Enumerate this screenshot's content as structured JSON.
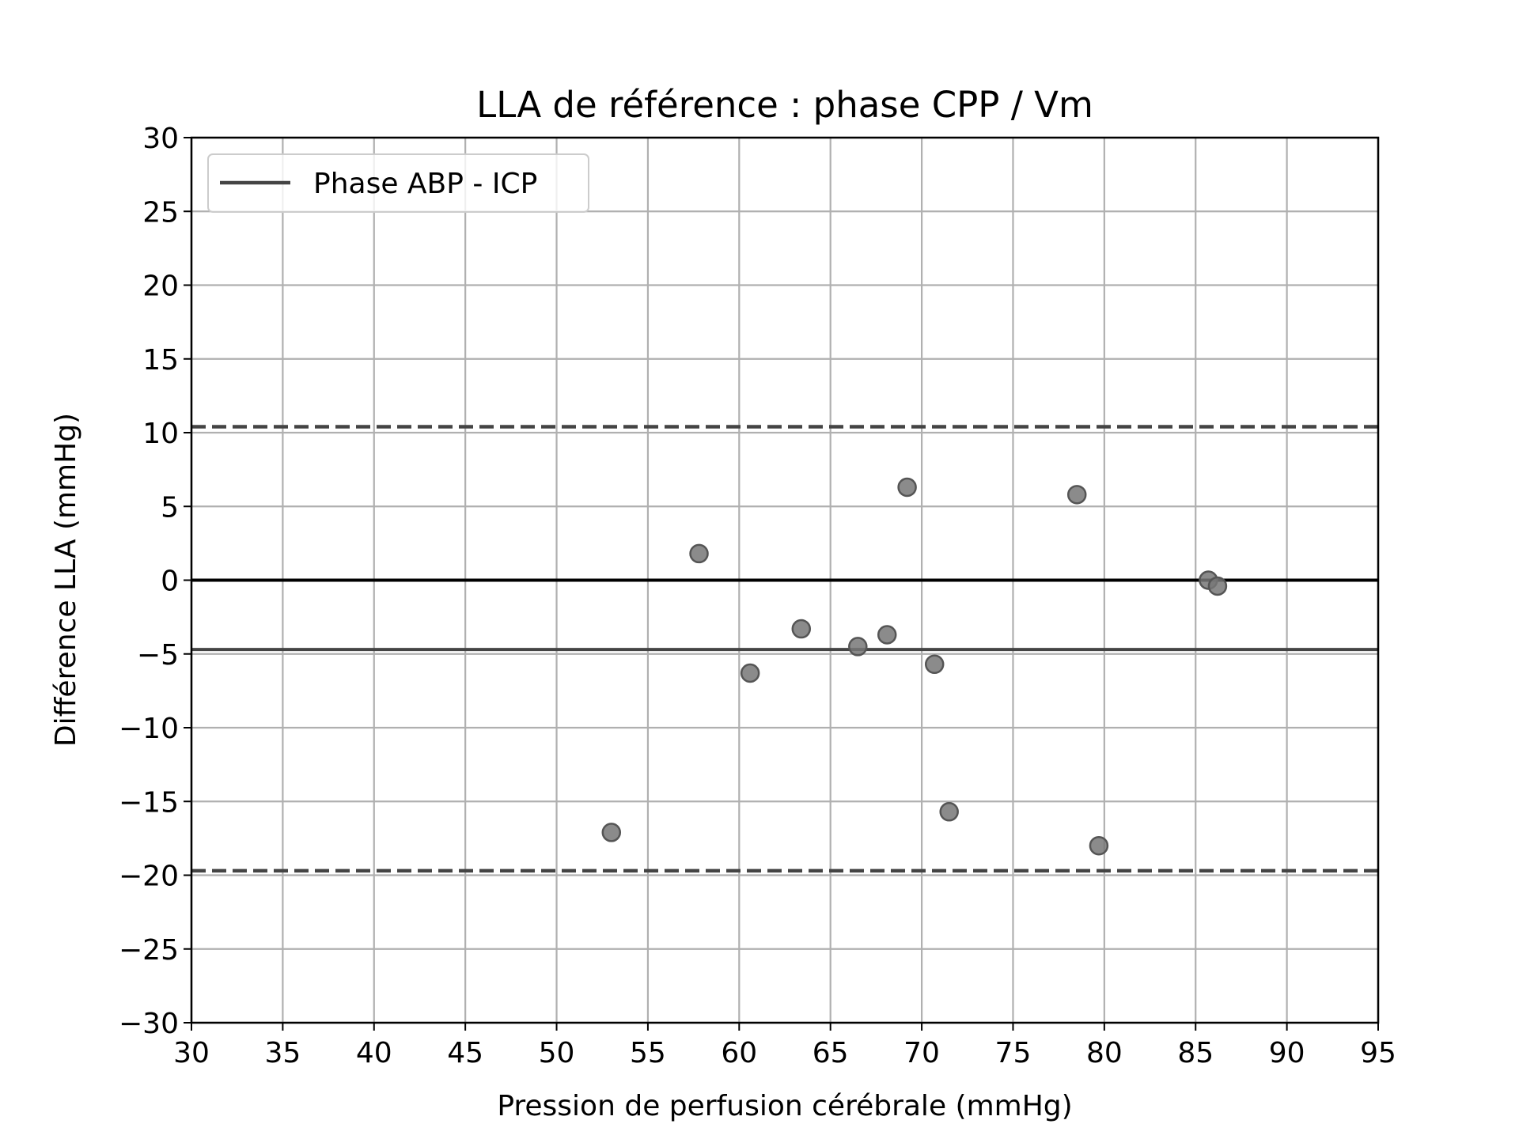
{
  "chart_data": {
    "type": "scatter",
    "title": "LLA de référence : phase CPP / Vm",
    "xlabel": "Pression de perfusion cérébrale (mmHg)",
    "ylabel": "Différence LLA (mmHg)",
    "xlim": [
      30,
      95
    ],
    "ylim": [
      -30,
      30
    ],
    "xticks": [
      30,
      35,
      40,
      45,
      50,
      55,
      60,
      65,
      70,
      75,
      80,
      85,
      90,
      95
    ],
    "yticks": [
      -30,
      -25,
      -20,
      -15,
      -10,
      -5,
      0,
      5,
      10,
      15,
      20,
      25,
      30
    ],
    "ytick_labels": [
      "−30",
      "−25",
      "−20",
      "−15",
      "−10",
      "−5",
      "0",
      "5",
      "10",
      "15",
      "20",
      "25",
      "30"
    ],
    "grid": true,
    "legend": {
      "position": "top-left",
      "entries": [
        "Phase ABP - ICP"
      ]
    },
    "series": [
      {
        "name": "Phase ABP - ICP",
        "type": "scatter",
        "color": "#777777",
        "points": [
          {
            "x": 53.0,
            "y": -17.1
          },
          {
            "x": 57.8,
            "y": 1.8
          },
          {
            "x": 60.6,
            "y": -6.3
          },
          {
            "x": 63.4,
            "y": -3.3
          },
          {
            "x": 66.5,
            "y": -4.5
          },
          {
            "x": 68.1,
            "y": -3.7
          },
          {
            "x": 69.2,
            "y": 6.3
          },
          {
            "x": 70.7,
            "y": -5.7
          },
          {
            "x": 71.5,
            "y": -15.7
          },
          {
            "x": 78.5,
            "y": 5.8
          },
          {
            "x": 79.7,
            "y": -18.0
          },
          {
            "x": 85.7,
            "y": 0.0
          },
          {
            "x": 86.2,
            "y": -0.4
          }
        ]
      }
    ],
    "reference_lines": [
      {
        "name": "zero-line",
        "y": 0,
        "style": "solid",
        "color": "#000000"
      },
      {
        "name": "mean-line",
        "y": -4.7,
        "style": "solid",
        "color": "#444444"
      },
      {
        "name": "upper-loa-line",
        "y": 10.4,
        "style": "dashed",
        "color": "#444444"
      },
      {
        "name": "lower-loa-line",
        "y": -19.7,
        "style": "dashed",
        "color": "#444444"
      }
    ]
  }
}
